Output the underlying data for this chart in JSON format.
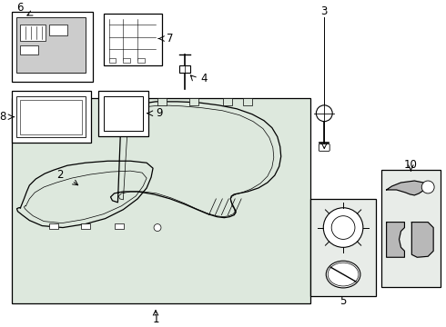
{
  "bg_white": "#ffffff",
  "bg_gray": "#dde8dd",
  "bg_light": "#e8ece8",
  "lw_main": 0.9,
  "lw_thin": 0.5,
  "fs_label": 8.5
}
